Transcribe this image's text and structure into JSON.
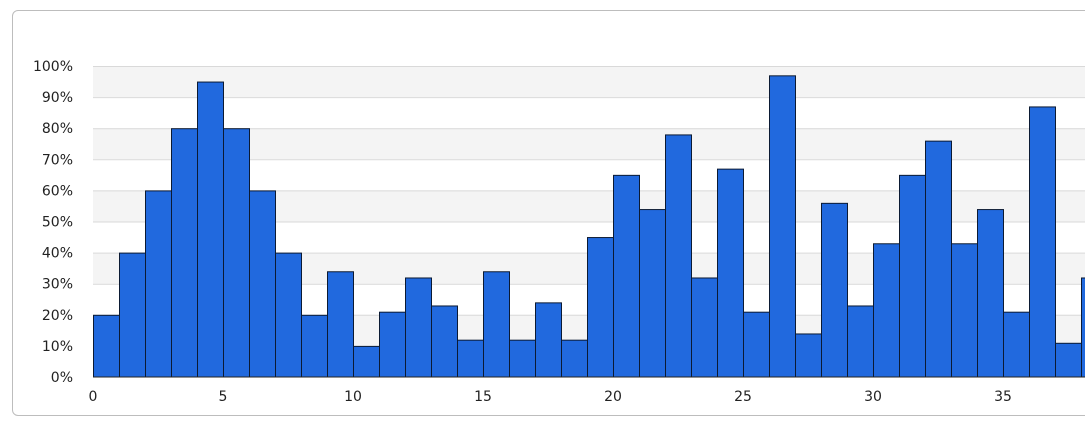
{
  "chart_data": {
    "type": "bar",
    "title": "",
    "xlabel": "",
    "ylabel": "",
    "x": [
      0,
      1,
      2,
      3,
      4,
      5,
      6,
      7,
      8,
      9,
      10,
      11,
      12,
      13,
      14,
      15,
      16,
      17,
      18,
      19,
      20,
      21,
      22,
      23,
      24,
      25,
      26,
      27,
      28,
      29,
      30,
      31,
      32,
      33,
      34,
      35,
      36,
      37,
      38
    ],
    "values": [
      20,
      40,
      60,
      80,
      95,
      80,
      60,
      40,
      20,
      34,
      10,
      21,
      32,
      23,
      12,
      34,
      12,
      24,
      12,
      45,
      65,
      54,
      78,
      32,
      67,
      21,
      97,
      14,
      56,
      23,
      43,
      65,
      76,
      43,
      54,
      21,
      87,
      11,
      32
    ],
    "ylim": [
      0,
      100
    ],
    "y_ticks": [
      0,
      10,
      20,
      30,
      40,
      50,
      60,
      70,
      80,
      90,
      100
    ],
    "y_tick_labels": [
      "0%",
      "10%",
      "20%",
      "30%",
      "40%",
      "50%",
      "60%",
      "70%",
      "80%",
      "90%",
      "100%"
    ],
    "x_ticks": [
      0,
      5,
      10,
      15,
      20,
      25,
      30,
      35
    ],
    "x_tick_labels": [
      "0",
      "5",
      "10",
      "15",
      "20",
      "25",
      "30",
      "35"
    ],
    "grid": true,
    "colors": {
      "bar": "#2169de",
      "bar_edge": "#0b1a33",
      "band": "#f4f4f4",
      "grid": "#d9d9d9"
    }
  }
}
